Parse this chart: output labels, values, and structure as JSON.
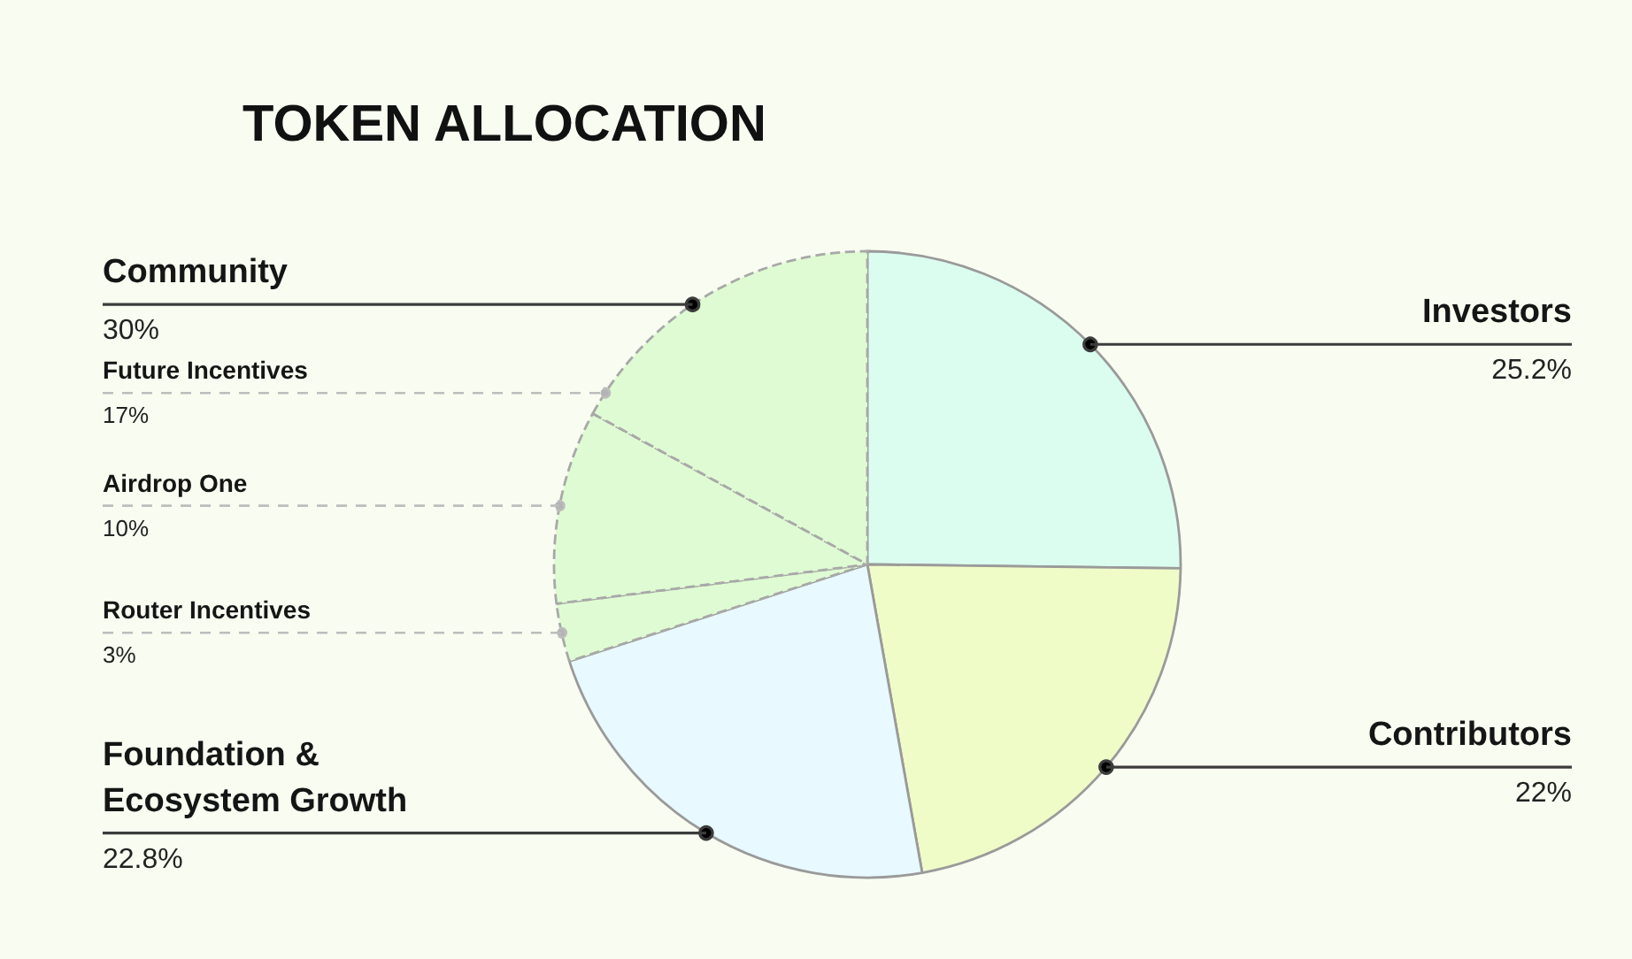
{
  "chart_data": {
    "type": "pie",
    "title": "TOKEN ALLOCATION",
    "categories": [
      "Investors",
      "Contributors",
      "Foundation & Ecosystem Growth",
      "Router Incentives",
      "Airdrop One",
      "Future Incentives"
    ],
    "values": [
      25.2,
      22,
      22.8,
      3,
      10,
      17
    ],
    "colors": [
      "#dbfdf0",
      "#f0fcc8",
      "#e8f9ff",
      "#dffbd3",
      "#dffbd3",
      "#dffbd3"
    ],
    "value_labels": [
      "25.2%",
      "22%",
      "22.8%",
      "3%",
      "10%",
      "17%"
    ],
    "annotations": [
      "Community",
      "30%"
    ]
  }
}
